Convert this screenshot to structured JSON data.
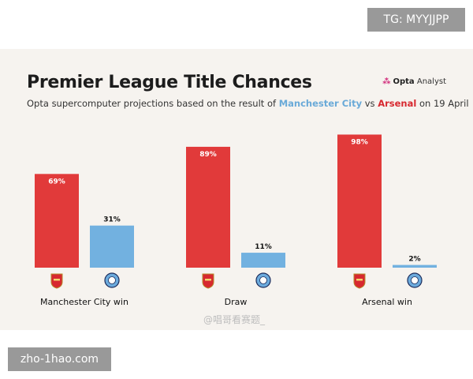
{
  "overlay": {
    "top_right_tag": "TG: MYYJJPP",
    "bottom_left_tag": "zho-1hao.com",
    "watermark": "@唱哥看赛题_"
  },
  "brand": {
    "name": "Opta",
    "suffix": "Analyst"
  },
  "colors": {
    "arsenal": "#e13a3a",
    "city": "#72b1e0",
    "accent_city": "#6aaad8",
    "accent_arsenal": "#d7282f"
  },
  "chart_data": {
    "type": "bar",
    "title": "Premier League Title Chances",
    "subtitle_parts": [
      "Opta supercomputer projections based on the result of ",
      "Manchester City",
      " vs ",
      "Arsenal",
      " on 19 April"
    ],
    "categories": [
      "Manchester City win",
      "Draw",
      "Arsenal win"
    ],
    "series": [
      {
        "values": [
          69,
          89,
          98
        ],
        "value_labels": [
          "69%",
          "89%",
          "98%"
        ],
        "icon": "arsenal-crest-icon"
      },
      {
        "values": [
          31,
          11,
          2
        ],
        "value_labels": [
          "31%",
          "11%",
          "2%"
        ],
        "icon": "man-city-crest-icon"
      }
    ],
    "ylim": [
      0,
      100
    ],
    "grid": false
  }
}
